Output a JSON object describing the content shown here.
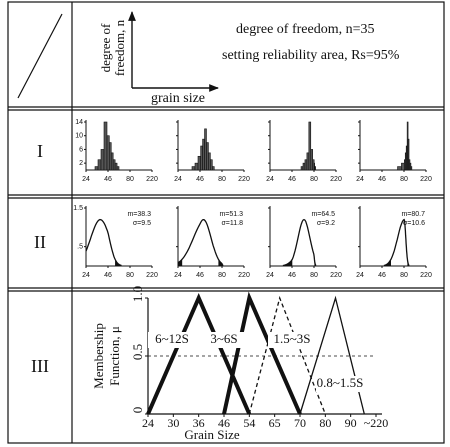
{
  "header": {
    "y_axis_label": [
      "degree of",
      "freedom, n"
    ],
    "x_axis_label": "grain size",
    "notes": [
      "degree of freedom, n=35",
      "setting reliability area, Rs=95%"
    ]
  },
  "rows": [
    {
      "label": "I",
      "type": "histogram",
      "ylim": [
        0,
        14
      ],
      "yticks": [
        2,
        6,
        10,
        14
      ],
      "xlim": [
        24,
        220
      ],
      "xticks": [
        24,
        46,
        80,
        220
      ],
      "panels": [
        {
          "bins": [
            33,
            36,
            39,
            42,
            45,
            48,
            51,
            54,
            57,
            60,
            63
          ],
          "counts": [
            1,
            3,
            6,
            14,
            10,
            8,
            5,
            3,
            2,
            1
          ]
        },
        {
          "bins": [
            38,
            41,
            44,
            47,
            50,
            53,
            56,
            59,
            62,
            65,
            68
          ],
          "counts": [
            1,
            2,
            4,
            7,
            9,
            12,
            8,
            5,
            3,
            1
          ]
        },
        {
          "bins": [
            60,
            63,
            66,
            69,
            72,
            75,
            78,
            81,
            84,
            87,
            90
          ],
          "counts": [
            1,
            2,
            3,
            5,
            14,
            6,
            3,
            2,
            1,
            1
          ]
        },
        {
          "bins": [
            70,
            76,
            82,
            88,
            94,
            100,
            106,
            112,
            118,
            124,
            130
          ],
          "counts": [
            1,
            2,
            3,
            5,
            7,
            14,
            9,
            3,
            2,
            1
          ]
        }
      ]
    },
    {
      "label": "II",
      "type": "distribution",
      "ylim": [
        0,
        1.5
      ],
      "yticks": [
        {
          "value": 0.5,
          "label": ".5"
        },
        1.5
      ],
      "xlim": [
        24,
        220
      ],
      "xticks": [
        24,
        46,
        80,
        220
      ],
      "panels": [
        {
          "mean": 38.3,
          "mean_label": "m=38.3",
          "sd": 9.5,
          "sd_label": "σ=9.5"
        },
        {
          "mean": 51.3,
          "mean_label": "m=51.3",
          "sd": 11.8,
          "sd_label": "σ=11.8"
        },
        {
          "mean": 64.5,
          "mean_label": "m=64.5",
          "sd": 9.2,
          "sd_label": "σ=9.2"
        },
        {
          "mean": 80.7,
          "mean_label": "m=80.7",
          "sd": 10.6,
          "sd_label": "σ=10.6"
        }
      ]
    },
    {
      "label": "III",
      "type": "membership",
      "y_axis_label": [
        "Membership",
        "Function, μ"
      ],
      "x_axis_label": "Grain Size",
      "ylim": [
        0,
        1
      ],
      "yticks": [
        0,
        0.5,
        {
          "value": 1,
          "label": "1.0"
        }
      ],
      "reference_line": 0.5,
      "xlim": [
        24,
        220
      ],
      "xticks": [
        24,
        30,
        36,
        46,
        54,
        65,
        70,
        80,
        90,
        {
          "value": 220,
          "label": "~220"
        }
      ],
      "series": [
        {
          "name": "6~12S",
          "style": "thick",
          "x": [
            24,
            36,
            54
          ],
          "y": [
            0,
            1,
            0
          ]
        },
        {
          "name": "3~6S",
          "style": "thick",
          "x": [
            46,
            54,
            70
          ],
          "y": [
            0,
            1,
            0
          ]
        },
        {
          "name": "1.5~3S",
          "style": "dashed",
          "x": [
            54,
            66,
            80
          ],
          "y": [
            0,
            1,
            0
          ]
        },
        {
          "name": "0.8~1.5S",
          "style": "thin",
          "x": [
            70,
            84,
            160
          ],
          "y": [
            0,
            1,
            0
          ]
        }
      ]
    }
  ]
}
